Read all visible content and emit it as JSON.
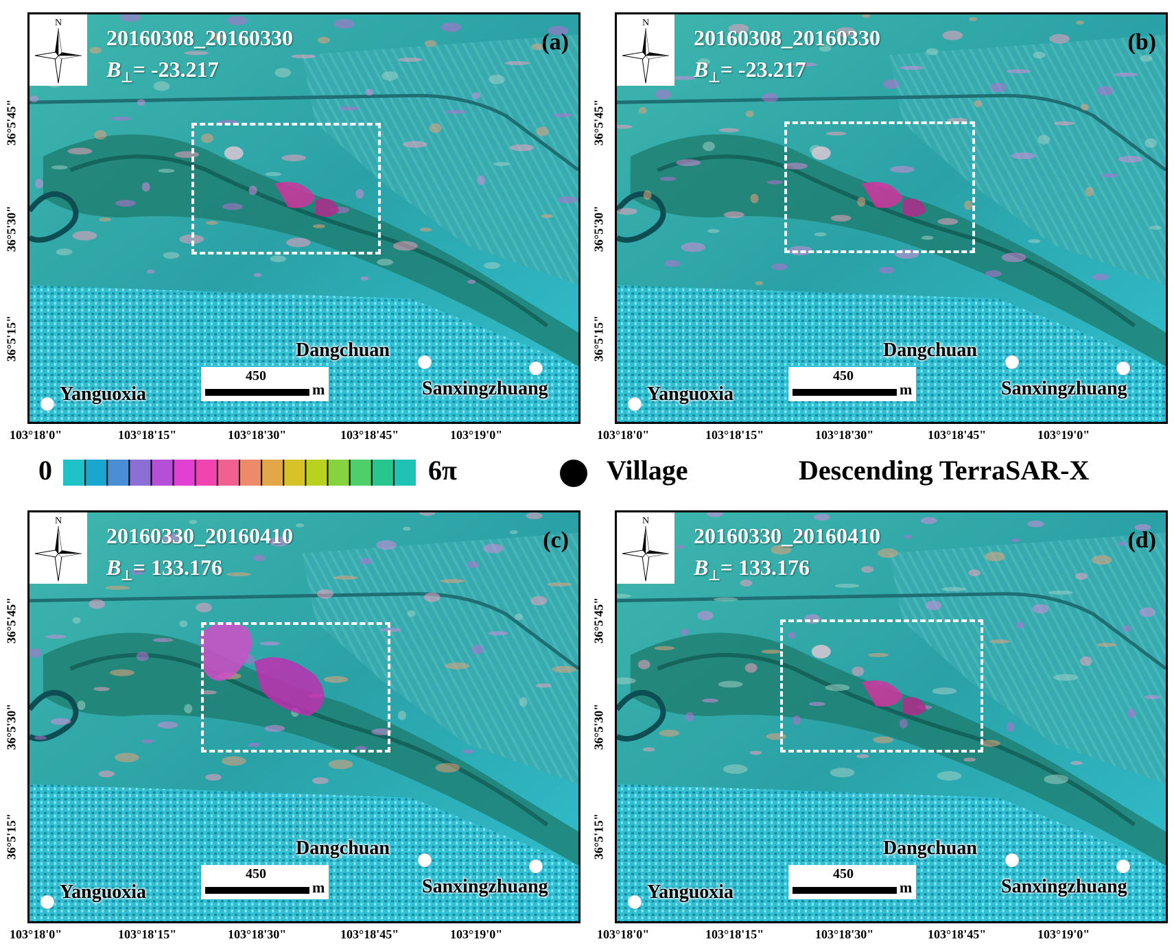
{
  "panels": [
    {
      "letter": "(a)",
      "date": "20160308_20160330",
      "bperp_label": "B",
      "bperp_sub": "⊥",
      "bperp_value": "= -23.217"
    },
    {
      "letter": "(b)",
      "date": "20160308_20160330",
      "bperp_label": "B",
      "bperp_sub": "⊥",
      "bperp_value": "= -23.217"
    },
    {
      "letter": "(c)",
      "date": "20160330_20160410",
      "bperp_label": "B",
      "bperp_sub": "⊥",
      "bperp_value": "= 133.176"
    },
    {
      "letter": "(d)",
      "date": "20160330_20160410",
      "bperp_label": "B",
      "bperp_sub": "⊥",
      "bperp_value": "= 133.176"
    }
  ],
  "north_label": "N",
  "villages": {
    "a": "Yanguoxia",
    "b": "Dangchuan",
    "c": "Sanxingzhuang"
  },
  "scale": {
    "value": "450",
    "unit": "m"
  },
  "lat_ticks": [
    "36°5'45\"",
    "36°5'30\"",
    "36°5'15\""
  ],
  "lon_ticks": [
    "103°18'0\"",
    "103°18'15\"",
    "103°18'30\"",
    "103°18'45\"",
    "103°19'0\""
  ],
  "legend": {
    "min": "0",
    "max": "6π",
    "village_label": "Village",
    "sensor": "Descending TerraSAR-X",
    "colormap": [
      "#1fc3c7",
      "#1aa7cf",
      "#4a8fd6",
      "#8b6fd6",
      "#b54fd6",
      "#e23fd4",
      "#f045b0",
      "#f06090",
      "#ec8a6a",
      "#e3a648",
      "#d8c22a",
      "#b8d21f",
      "#86d23f",
      "#4fcf6a",
      "#28c58e",
      "#1fc3b5"
    ],
    "colors": {
      "dot": "#000000",
      "map_base": "#2fa9a8"
    }
  }
}
